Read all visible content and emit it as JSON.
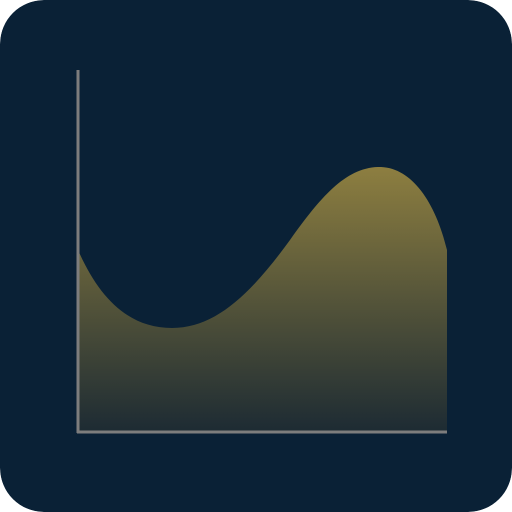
{
  "icon": {
    "name": "area-chart-icon",
    "colors": {
      "background": "#0a2136",
      "axis": "#7d7d7d",
      "fill_top": "#8e7f40",
      "fill_bottom": "#1d2b33"
    }
  }
}
